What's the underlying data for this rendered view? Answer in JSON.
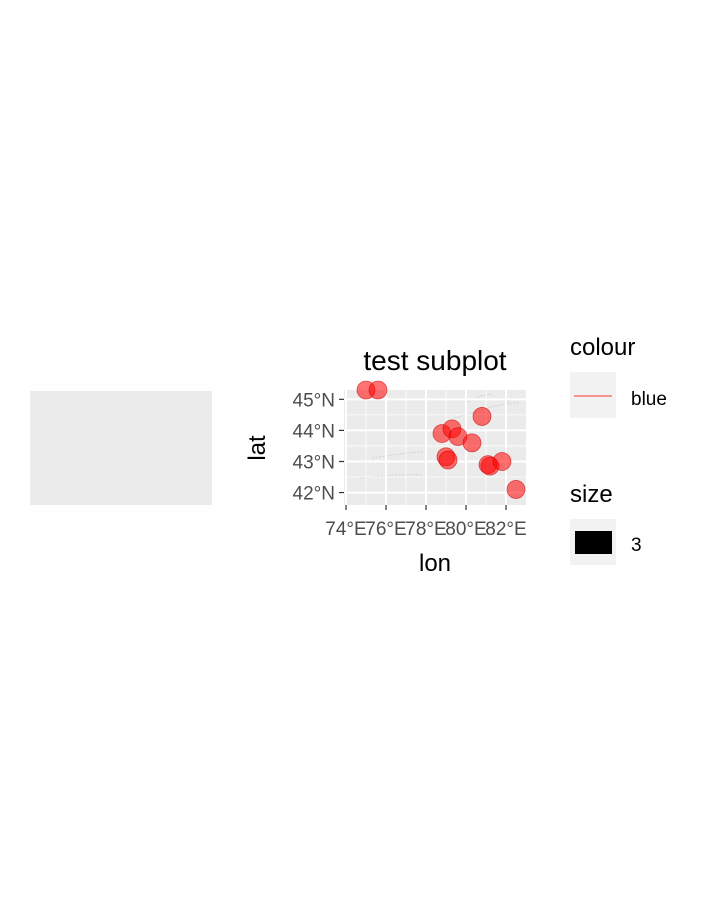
{
  "empty_panel": {
    "fill": "#ebebeb"
  },
  "chart_data": {
    "type": "scatter",
    "title": "test subplot",
    "xlabel": "lon",
    "ylabel": "lat",
    "xlim": [
      73.9,
      83.0
    ],
    "ylim": [
      41.6,
      45.3
    ],
    "xticks": [
      {
        "value": 74,
        "label": "74°E"
      },
      {
        "value": 76,
        "label": "76°E"
      },
      {
        "value": 78,
        "label": "78°E"
      },
      {
        "value": 80,
        "label": "80°E"
      },
      {
        "value": 82,
        "label": "82°E"
      }
    ],
    "yticks": [
      {
        "value": 42,
        "label": "42°N"
      },
      {
        "value": 43,
        "label": "43°N"
      },
      {
        "value": 44,
        "label": "44°N"
      },
      {
        "value": 45,
        "label": "45°N"
      }
    ],
    "panel_fill": "#ebebeb",
    "grid_color": "#ffffff",
    "point_color": "#ff0000",
    "point_alpha": 0.55,
    "points": [
      {
        "x": 75.0,
        "y": 45.3
      },
      {
        "x": 75.6,
        "y": 45.3
      },
      {
        "x": 78.8,
        "y": 43.9
      },
      {
        "x": 79.3,
        "y": 44.05
      },
      {
        "x": 79.6,
        "y": 43.8
      },
      {
        "x": 79.0,
        "y": 43.15
      },
      {
        "x": 79.1,
        "y": 43.05
      },
      {
        "x": 80.3,
        "y": 43.6
      },
      {
        "x": 80.8,
        "y": 44.45
      },
      {
        "x": 81.1,
        "y": 42.9
      },
      {
        "x": 81.2,
        "y": 42.85
      },
      {
        "x": 81.8,
        "y": 43.0
      },
      {
        "x": 82.5,
        "y": 42.1
      }
    ],
    "legends": [
      {
        "title": "colour",
        "key": "line",
        "key_color": "#f8766d",
        "label": "blue"
      },
      {
        "title": "size",
        "key": "rect",
        "key_color": "#000000",
        "label": "3"
      }
    ],
    "legend_position": "right"
  }
}
